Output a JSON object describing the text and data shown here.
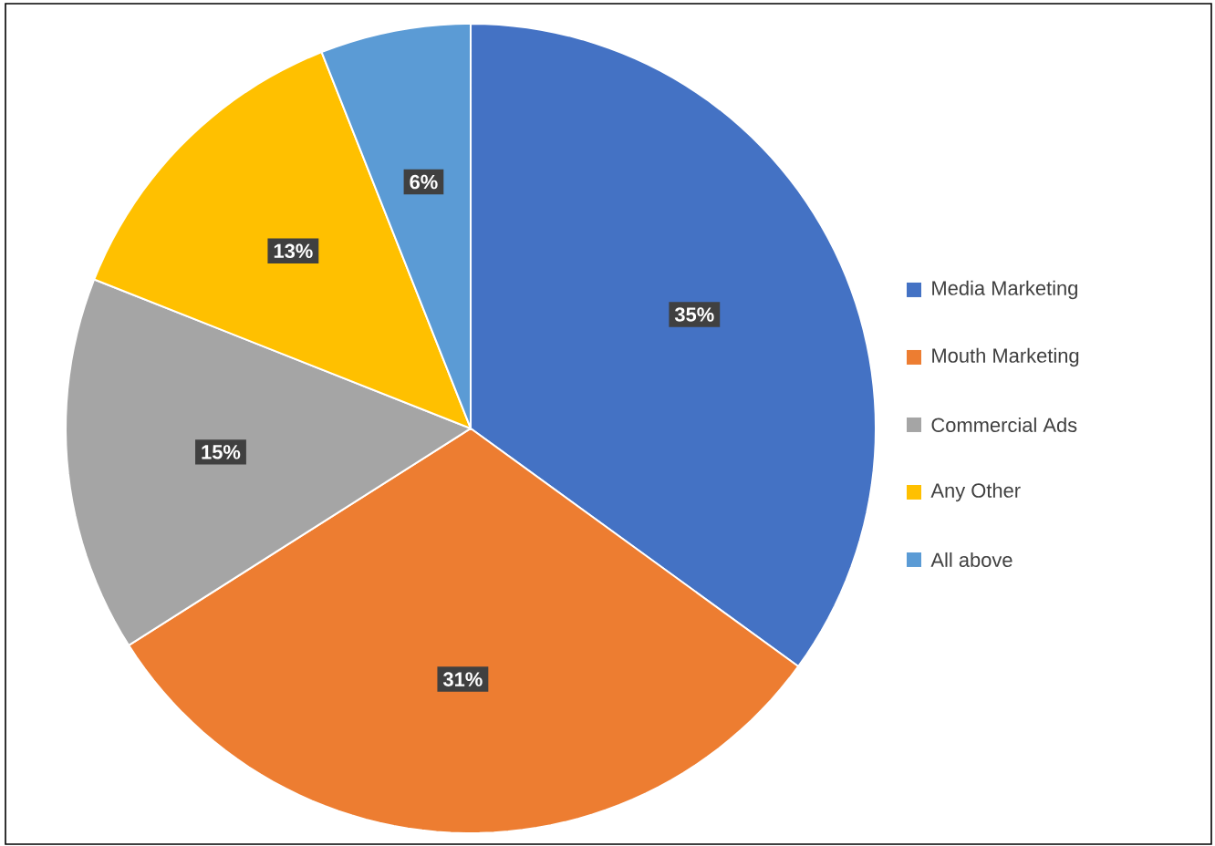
{
  "chart_data": {
    "type": "pie",
    "categories": [
      "Media Marketing",
      "Mouth Marketing",
      "Commercial Ads",
      "Any Other",
      "All above"
    ],
    "values": [
      35,
      31,
      15,
      13,
      6
    ],
    "value_labels": [
      "35%",
      "31%",
      "15%",
      "13%",
      "6%"
    ],
    "colors": [
      "#4472c4",
      "#ed7d31",
      "#a5a5a5",
      "#ffc000",
      "#5b9bd5"
    ],
    "legend": "right"
  }
}
